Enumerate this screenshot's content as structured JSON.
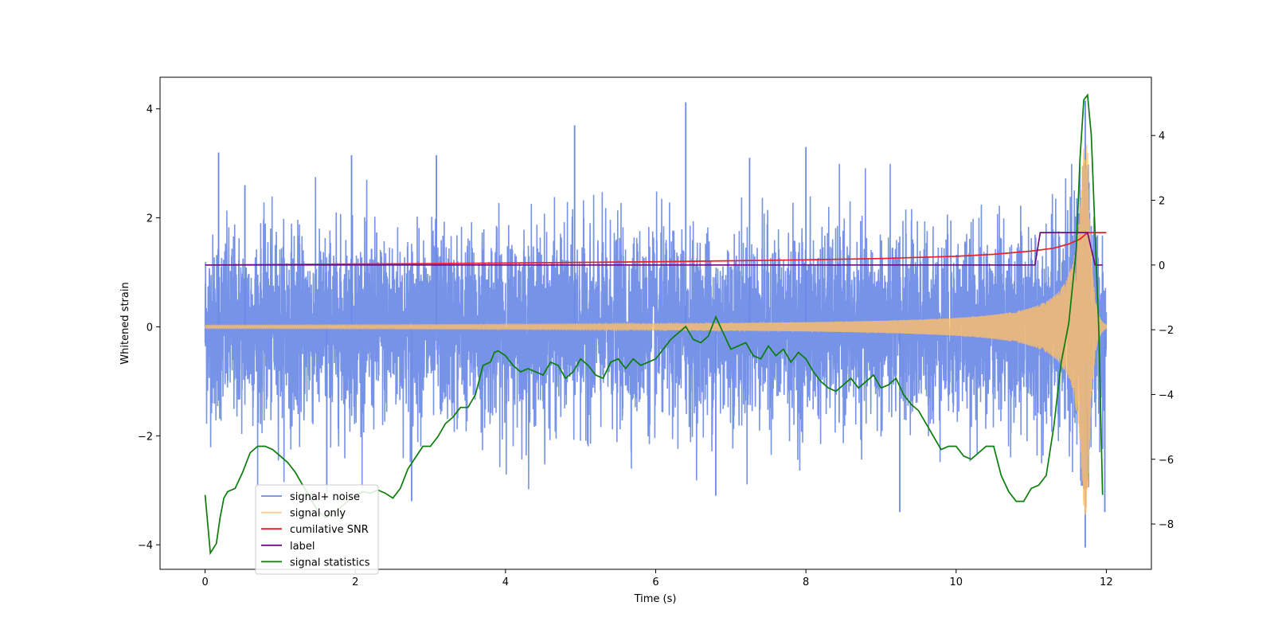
{
  "chart_data": {
    "type": "line",
    "xlabel": "Time (s)",
    "ylabel": "Whitened strain",
    "xlim": [
      -0.6,
      12.6
    ],
    "ylim": [
      -4.45,
      4.58
    ],
    "y2lim": [
      -9.4,
      5.8
    ],
    "x_ticks": [
      0,
      2,
      4,
      6,
      8,
      10,
      12
    ],
    "y_ticks": [
      -4,
      -2,
      0,
      2,
      4
    ],
    "y2_ticks": [
      -8,
      -6,
      -4,
      -2,
      0,
      2,
      4
    ],
    "legend_position": "lower-left",
    "series": [
      {
        "name": "signal+ noise",
        "axis": "left",
        "color": "#6b8ae6",
        "kind": "noise",
        "duration": 12.0,
        "noise_std": 0.85,
        "peaks": [
          {
            "x": 0.18,
            "y": 3.2
          },
          {
            "x": 0.53,
            "y": 2.6
          },
          {
            "x": 1.95,
            "y": 3.15
          },
          {
            "x": 3.08,
            "y": 3.15
          },
          {
            "x": 4.92,
            "y": 3.7
          },
          {
            "x": 6.4,
            "y": 4.12
          },
          {
            "x": 7.25,
            "y": 3.1
          },
          {
            "x": 8.0,
            "y": 3.3
          },
          {
            "x": 11.72,
            "y": 4.15
          },
          {
            "x": 1.62,
            "y": -3.05
          },
          {
            "x": 2.75,
            "y": -3.2
          },
          {
            "x": 6.8,
            "y": -3.1
          },
          {
            "x": 9.25,
            "y": -3.4
          },
          {
            "x": 11.72,
            "y": -4.05
          },
          {
            "x": 11.98,
            "y": -3.4
          }
        ]
      },
      {
        "name": "signal only",
        "axis": "left",
        "color": "#ffbf66",
        "kind": "chirp",
        "duration": 12.0,
        "merger_time": 11.75,
        "peak_amplitude": 3.45
      },
      {
        "name": "cumilative SNR",
        "axis": "right",
        "color": "#e8202a",
        "x": [
          0,
          2,
          4,
          6,
          8,
          9,
          10,
          10.5,
          11,
          11.3,
          11.5,
          11.65,
          11.75,
          11.85,
          12.0
        ],
        "y": [
          0,
          0.03,
          0.06,
          0.1,
          0.16,
          0.2,
          0.27,
          0.33,
          0.43,
          0.52,
          0.65,
          0.8,
          1.0,
          1.0,
          1.0
        ]
      },
      {
        "name": "label",
        "axis": "right",
        "color": "#6a0f7c",
        "x": [
          0,
          11.05,
          11.12,
          11.75,
          11.85,
          11.95
        ],
        "y": [
          0,
          0,
          1.0,
          1.0,
          0,
          0
        ]
      },
      {
        "name": "signal statistics",
        "axis": "right",
        "color": "#0a7d0a",
        "x": [
          0,
          0.07,
          0.15,
          0.2,
          0.25,
          0.3,
          0.4,
          0.5,
          0.6,
          0.7,
          0.8,
          0.9,
          1.0,
          1.1,
          1.2,
          1.3,
          1.4,
          1.5,
          1.6,
          1.7,
          1.8,
          1.9,
          2.0,
          2.1,
          2.2,
          2.3,
          2.4,
          2.5,
          2.6,
          2.7,
          2.8,
          2.9,
          3.0,
          3.1,
          3.2,
          3.3,
          3.4,
          3.5,
          3.6,
          3.7,
          3.8,
          3.85,
          3.9,
          4.0,
          4.1,
          4.2,
          4.3,
          4.4,
          4.5,
          4.6,
          4.7,
          4.8,
          4.9,
          5.0,
          5.1,
          5.2,
          5.3,
          5.4,
          5.5,
          5.6,
          5.7,
          5.8,
          5.9,
          6.0,
          6.1,
          6.2,
          6.3,
          6.4,
          6.5,
          6.6,
          6.7,
          6.8,
          6.9,
          7.0,
          7.1,
          7.2,
          7.3,
          7.4,
          7.5,
          7.6,
          7.7,
          7.8,
          7.9,
          8.0,
          8.1,
          8.2,
          8.3,
          8.4,
          8.5,
          8.6,
          8.7,
          8.8,
          8.9,
          9.0,
          9.1,
          9.2,
          9.3,
          9.4,
          9.5,
          9.6,
          9.7,
          9.8,
          9.9,
          10.0,
          10.1,
          10.2,
          10.3,
          10.4,
          10.5,
          10.6,
          10.7,
          10.8,
          10.9,
          11.0,
          11.1,
          11.2,
          11.3,
          11.4,
          11.5,
          11.6,
          11.65,
          11.7,
          11.75,
          11.8,
          11.85,
          11.9,
          11.95
        ],
        "y": [
          -7.1,
          -8.9,
          -8.6,
          -7.8,
          -7.2,
          -7.0,
          -6.9,
          -6.4,
          -5.8,
          -5.6,
          -5.6,
          -5.7,
          -5.9,
          -6.1,
          -6.4,
          -6.8,
          -7.2,
          -7.6,
          -7.8,
          -7.7,
          -7.5,
          -7.3,
          -7.1,
          -7.0,
          -7.05,
          -6.95,
          -7.05,
          -7.2,
          -6.9,
          -6.3,
          -5.95,
          -5.6,
          -5.6,
          -5.3,
          -4.9,
          -4.7,
          -4.4,
          -4.4,
          -4.0,
          -3.1,
          -3.0,
          -2.7,
          -2.65,
          -2.8,
          -3.1,
          -3.3,
          -3.2,
          -3.3,
          -3.4,
          -3.0,
          -3.1,
          -3.5,
          -3.3,
          -2.9,
          -3.1,
          -3.4,
          -3.5,
          -3.0,
          -2.9,
          -3.2,
          -2.9,
          -3.1,
          -3.0,
          -2.9,
          -2.6,
          -2.3,
          -2.1,
          -1.9,
          -2.3,
          -2.4,
          -2.2,
          -1.6,
          -2.1,
          -2.6,
          -2.5,
          -2.4,
          -2.8,
          -2.9,
          -2.5,
          -2.8,
          -2.6,
          -3.0,
          -2.7,
          -2.9,
          -3.3,
          -3.6,
          -3.8,
          -3.9,
          -3.7,
          -3.5,
          -3.8,
          -3.6,
          -3.4,
          -3.8,
          -3.7,
          -3.5,
          -4.0,
          -4.3,
          -4.5,
          -4.9,
          -5.3,
          -5.7,
          -5.6,
          -5.6,
          -5.9,
          -6.0,
          -5.8,
          -5.6,
          -5.6,
          -6.5,
          -7.0,
          -7.3,
          -7.3,
          -6.9,
          -6.8,
          -6.5,
          -5.0,
          -3.0,
          -1.8,
          0.5,
          3.3,
          5.1,
          5.25,
          4.0,
          1.0,
          -2.0,
          -7.1
        ]
      }
    ]
  }
}
